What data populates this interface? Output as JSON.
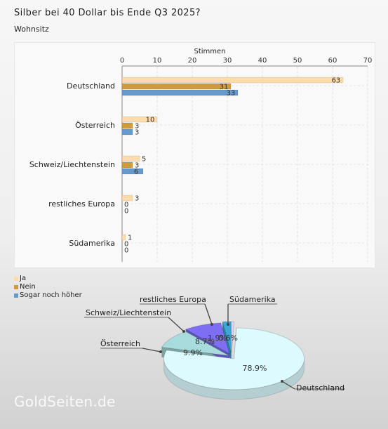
{
  "title": "Silber bei 40 Dollar bis Ende Q3 2025?",
  "subtitle": "Wohnsitz",
  "watermark": "GoldSeiten.de",
  "colors": {
    "ja": "#fbdcaa",
    "nein": "#cf9b3c",
    "sogar": "#6699cc",
    "pie_deutschland": "#ddfbff",
    "pie_oesterreich": "#a8dcdc",
    "pie_schweiz": "#7e6ef4",
    "pie_restliches": "#3ba8d6",
    "pie_suedamerika": "#d8d8f4"
  },
  "chart_data": [
    {
      "type": "bar",
      "orientation": "horizontal",
      "xlabel": "Stimmen",
      "xlim": [
        0,
        70
      ],
      "xticks": [
        0,
        10,
        20,
        30,
        40,
        50,
        60,
        70
      ],
      "categories": [
        "Deutschland",
        "Österreich",
        "Schweiz/Liechtenstein",
        "restliches Europa",
        "Südamerika"
      ],
      "series": [
        {
          "name": "Ja",
          "values": [
            63,
            10,
            5,
            3,
            1
          ]
        },
        {
          "name": "Nein",
          "values": [
            31,
            3,
            3,
            0,
            0
          ]
        },
        {
          "name": "Sogar noch höher",
          "values": [
            33,
            3,
            6,
            0,
            0
          ]
        }
      ],
      "legend_position": "bottom-left",
      "grid": true
    },
    {
      "type": "pie",
      "style": "3d",
      "labels": [
        "Deutschland",
        "Österreich",
        "Schweiz/Liechtenstein",
        "restliches Europa",
        "Südamerika"
      ],
      "values": [
        78.9,
        9.9,
        8.7,
        1.9,
        0.6
      ],
      "value_labels": [
        "78.9%",
        "9.9%",
        "8.7%",
        "1.9%",
        "0.6%"
      ]
    }
  ]
}
